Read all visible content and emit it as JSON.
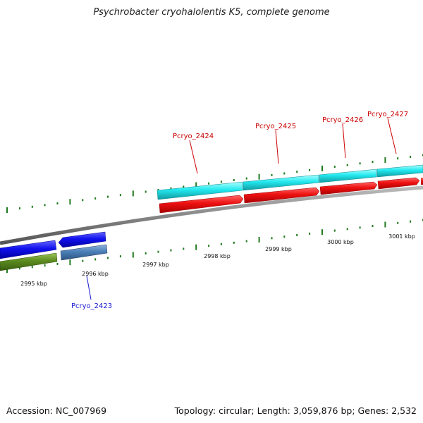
{
  "title": "Psychrobacter cryohalolentis K5, complete genome",
  "footer": {
    "accession": "Accession: NC_007969",
    "summary": "Topology: circular; Length: 3,059,876 bp; Genes: 2,532"
  },
  "scale_labels": [
    "2995 kbp",
    "2996 kbp",
    "2997 kbp",
    "2998 kbp",
    "2999 kbp",
    "3000 kbp",
    "3001 kbp"
  ],
  "genes": [
    {
      "name": "Pcryo_2423",
      "color": "#1a1ad0"
    },
    {
      "name": "Pcryo_2424",
      "color": "#cc0000"
    },
    {
      "name": "Pcryo_2425",
      "color": "#cc0000"
    },
    {
      "name": "Pcryo_2426",
      "color": "#cc0000"
    },
    {
      "name": "Pcryo_2427",
      "color": "#cc0000"
    }
  ],
  "colors": {
    "cds_forward": "#ee1111",
    "cds_reverse": "#1111ee",
    "gene_forward": "#22e8ee",
    "gene_reverse": "#4a7fb8",
    "cog_track": "#5a8a1e",
    "backbone": "#888888",
    "ticks": "#1e7a1e"
  }
}
